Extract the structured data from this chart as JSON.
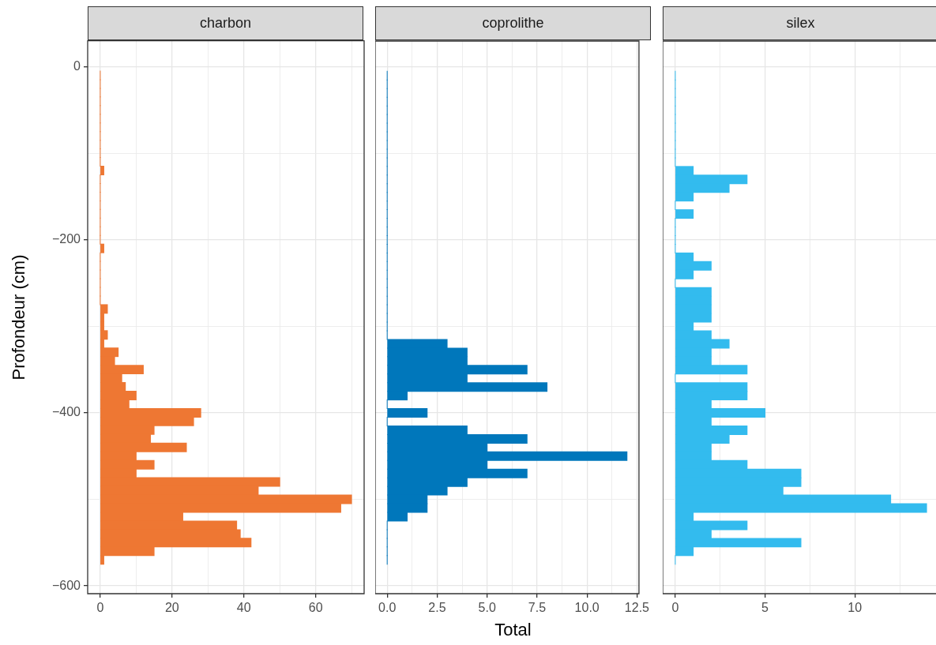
{
  "chart_data": [
    {
      "type": "histogram",
      "orientation": "horizontal",
      "title": "charbon",
      "ylabel": "Profondeur (cm)",
      "color": "#ee7733",
      "grid": true,
      "bins": [
        -5,
        -15,
        -25,
        -35,
        -45,
        -55,
        -65,
        -75,
        -85,
        -95,
        -105,
        -115,
        -125,
        -135,
        -145,
        -155,
        -165,
        -175,
        -185,
        -195,
        -205,
        -215,
        -225,
        -235,
        -245,
        -255,
        -265,
        -275,
        -285,
        -295,
        -305,
        -315,
        -325,
        -335,
        -345,
        -355,
        -365,
        -375,
        -385,
        -395,
        -405,
        -415,
        -425,
        -435,
        -445,
        -455,
        -465,
        -475,
        -485,
        -495,
        -505,
        -515,
        -525,
        -535,
        -545,
        -555,
        -565,
        -575
      ],
      "values": [
        0,
        0,
        0,
        0,
        0,
        0,
        0,
        0,
        0,
        0,
        0,
        1,
        0,
        0,
        0,
        0,
        0,
        0,
        0,
        0,
        1,
        0,
        0,
        0,
        0,
        0,
        0,
        2,
        1,
        1,
        2,
        1,
        5,
        4,
        12,
        6,
        7,
        10,
        8,
        28,
        26,
        15,
        14,
        24,
        10,
        15,
        10,
        50,
        44,
        70,
        67,
        23,
        38,
        39,
        42,
        15,
        1
      ],
      "xlim": [
        -3.5,
        73.5
      ],
      "xticks": [
        0,
        {
          "value": 10,
          "label": null
        },
        20,
        {
          "value": 30,
          "label": null
        },
        40,
        {
          "value": 50,
          "label": null
        },
        60,
        {
          "value": 70,
          "label": null
        }
      ],
      "ylim": [
        -609,
        30
      ],
      "yticks": [
        0,
        {
          "value": -100,
          "label": null
        },
        -200,
        {
          "value": -300,
          "label": null
        },
        -400,
        {
          "value": -500,
          "label": null
        },
        -600
      ]
    },
    {
      "type": "histogram",
      "orientation": "horizontal",
      "title": "coprolithe",
      "xlabel": "Total",
      "color": "#0077bb",
      "grid": true,
      "tick_labels": "x",
      "bins": [
        -5,
        -15,
        -25,
        -35,
        -45,
        -55,
        -65,
        -75,
        -85,
        -95,
        -105,
        -115,
        -125,
        -135,
        -145,
        -155,
        -165,
        -175,
        -185,
        -195,
        -205,
        -215,
        -225,
        -235,
        -245,
        -255,
        -265,
        -275,
        -285,
        -295,
        -305,
        -315,
        -325,
        -335,
        -345,
        -355,
        -365,
        -375,
        -385,
        -395,
        -405,
        -415,
        -425,
        -435,
        -445,
        -455,
        -465,
        -475,
        -485,
        -495,
        -505,
        -515,
        -525,
        -535,
        -545,
        -555,
        -565,
        -575
      ],
      "values": [
        0,
        0,
        0,
        0,
        0,
        0,
        0,
        0,
        0,
        0,
        0,
        0,
        0,
        0,
        0,
        0,
        0,
        0,
        0,
        0,
        0,
        0,
        0,
        0,
        0,
        0,
        0,
        0,
        0,
        0,
        0,
        3,
        4,
        4,
        7,
        4,
        8,
        1,
        0,
        2,
        0,
        4,
        7,
        5,
        12,
        5,
        7,
        4,
        3,
        2,
        2,
        1,
        0,
        0,
        0,
        0,
        0
      ],
      "xlim": [
        -0.6,
        12.6
      ],
      "xticks": [
        {
          "value": 0,
          "label": "0.0"
        },
        {
          "value": 1.25,
          "label": null
        },
        2.5,
        {
          "value": 3.75,
          "label": null
        },
        {
          "value": 5,
          "label": "5.0"
        },
        {
          "value": 6.25,
          "label": null
        },
        7.5,
        {
          "value": 8.75,
          "label": null
        },
        {
          "value": 10,
          "label": "10.0"
        },
        {
          "value": 11.25,
          "label": null
        },
        12.5
      ],
      "ylim": [
        -609,
        30
      ],
      "yticks": [
        0,
        {
          "value": -100,
          "label": null
        },
        -200,
        {
          "value": -300,
          "label": null
        },
        -400,
        {
          "value": -500,
          "label": null
        },
        -600
      ]
    },
    {
      "type": "histogram",
      "orientation": "horizontal",
      "title": "silex",
      "color": "#33bbee",
      "grid": true,
      "tick_labels": "x",
      "bins": [
        -5,
        -15,
        -25,
        -35,
        -45,
        -55,
        -65,
        -75,
        -85,
        -95,
        -105,
        -115,
        -125,
        -135,
        -145,
        -155,
        -165,
        -175,
        -185,
        -195,
        -205,
        -215,
        -225,
        -235,
        -245,
        -255,
        -265,
        -275,
        -285,
        -295,
        -305,
        -315,
        -325,
        -335,
        -345,
        -355,
        -365,
        -375,
        -385,
        -395,
        -405,
        -415,
        -425,
        -435,
        -445,
        -455,
        -465,
        -475,
        -485,
        -495,
        -505,
        -515,
        -525,
        -535,
        -545,
        -555,
        -565,
        -575
      ],
      "values": [
        0,
        0,
        0,
        0,
        0,
        0,
        0,
        0,
        0,
        0,
        0,
        1,
        4,
        3,
        1,
        0,
        1,
        0,
        0,
        0,
        0,
        1,
        2,
        1,
        0,
        2,
        2,
        2,
        2,
        1,
        2,
        3,
        2,
        2,
        4,
        0,
        4,
        4,
        2,
        5,
        2,
        4,
        3,
        2,
        2,
        4,
        7,
        7,
        6,
        12,
        14,
        1,
        4,
        2,
        7,
        1,
        0
      ],
      "xlim": [
        -0.7,
        14.7
      ],
      "xticks": [
        0,
        {
          "value": 2.5,
          "label": null
        },
        5,
        {
          "value": 7.5,
          "label": null
        },
        10,
        {
          "value": 12.5,
          "label": null
        }
      ],
      "ylim": [
        -609,
        30
      ],
      "yticks": [
        0,
        {
          "value": -100,
          "label": null
        },
        -200,
        {
          "value": -300,
          "label": null
        },
        -400,
        {
          "value": -500,
          "label": null
        },
        -600
      ]
    }
  ]
}
